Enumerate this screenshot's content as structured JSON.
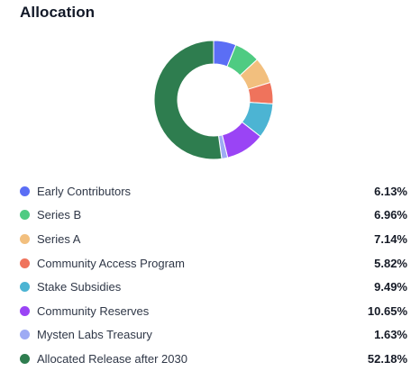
{
  "card": {
    "title": "Allocation"
  },
  "chart_data": {
    "type": "pie",
    "variant": "donut",
    "title": "Allocation",
    "start_angle_deg": 0,
    "direction": "clockwise",
    "legend_position": "bottom",
    "series": [
      {
        "name": "Early Contributors",
        "value": 6.13,
        "label": "6.13%",
        "color": "#5b6ef5"
      },
      {
        "name": "Series B",
        "value": 6.96,
        "label": "6.96%",
        "color": "#4fcb82"
      },
      {
        "name": "Series A",
        "value": 7.14,
        "label": "7.14%",
        "color": "#f2bf7e"
      },
      {
        "name": "Community Access Program",
        "value": 5.82,
        "label": "5.82%",
        "color": "#ef735c"
      },
      {
        "name": "Stake Subsidies",
        "value": 9.49,
        "label": "9.49%",
        "color": "#4cb4d3"
      },
      {
        "name": "Community Reserves",
        "value": 10.65,
        "label": "10.65%",
        "color": "#9a44f5"
      },
      {
        "name": "Mysten Labs Treasury",
        "value": 1.63,
        "label": "1.63%",
        "color": "#9eabf4"
      },
      {
        "name": "Allocated Release after 2030",
        "value": 52.18,
        "label": "52.18%",
        "color": "#2e7d4f"
      }
    ]
  }
}
